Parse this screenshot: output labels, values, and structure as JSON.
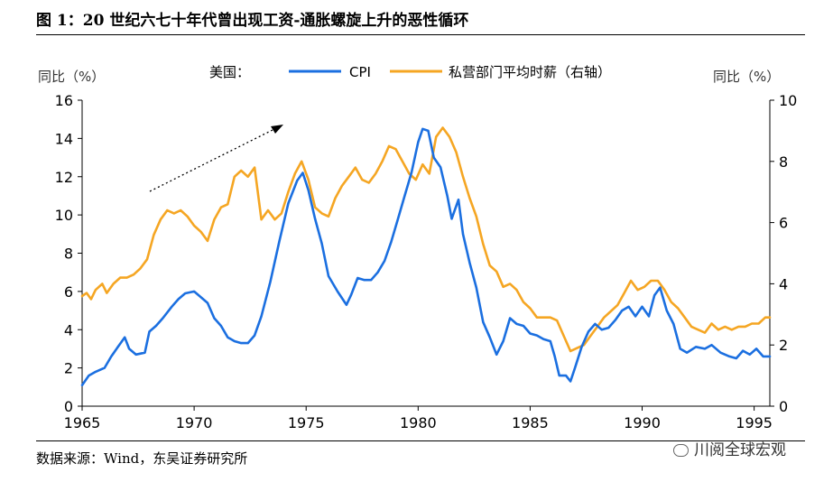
{
  "title": "图 1：20 世纪六七十年代曾出现工资-通胀螺旋上升的恶性循环",
  "footer": "数据来源：Wind，东吴证券研究所",
  "watermark": "川阅全球宏观",
  "colors": {
    "cpi": "#1B6FE0",
    "wage": "#F5A623"
  },
  "chart_data": {
    "type": "line",
    "left_axis_label": "同比（%）",
    "right_axis_label": "同比（%）",
    "legend_prefix": "美国：",
    "x_ticks": [
      1965,
      1970,
      1975,
      1980,
      1985,
      1990,
      1995
    ],
    "y_left": {
      "min": 0,
      "max": 16,
      "ticks": [
        0,
        2,
        4,
        6,
        8,
        10,
        12,
        14,
        16
      ]
    },
    "y_right": {
      "min": 0,
      "max": 10,
      "ticks": [
        0,
        2,
        4,
        6,
        8,
        10
      ]
    },
    "xlim": [
      1965,
      1995.7
    ],
    "annotation": "dotted arrow pointing upward (rising spiral trend)",
    "series": [
      {
        "name": "CPI",
        "axis": "left",
        "points": [
          [
            1965.0,
            1.1
          ],
          [
            1965.3,
            1.6
          ],
          [
            1965.6,
            1.8
          ],
          [
            1966.0,
            2.0
          ],
          [
            1966.3,
            2.6
          ],
          [
            1966.6,
            3.1
          ],
          [
            1966.9,
            3.6
          ],
          [
            1967.1,
            3.0
          ],
          [
            1967.4,
            2.7
          ],
          [
            1967.8,
            2.8
          ],
          [
            1968.0,
            3.9
          ],
          [
            1968.3,
            4.2
          ],
          [
            1968.6,
            4.6
          ],
          [
            1969.0,
            5.2
          ],
          [
            1969.3,
            5.6
          ],
          [
            1969.6,
            5.9
          ],
          [
            1970.0,
            6.0
          ],
          [
            1970.3,
            5.7
          ],
          [
            1970.6,
            5.4
          ],
          [
            1970.9,
            4.6
          ],
          [
            1971.2,
            4.2
          ],
          [
            1971.5,
            3.6
          ],
          [
            1971.8,
            3.4
          ],
          [
            1972.1,
            3.3
          ],
          [
            1972.4,
            3.3
          ],
          [
            1972.7,
            3.7
          ],
          [
            1973.0,
            4.7
          ],
          [
            1973.4,
            6.5
          ],
          [
            1973.8,
            8.6
          ],
          [
            1974.2,
            10.6
          ],
          [
            1974.6,
            11.8
          ],
          [
            1974.85,
            12.2
          ],
          [
            1975.1,
            11.3
          ],
          [
            1975.4,
            9.8
          ],
          [
            1975.7,
            8.5
          ],
          [
            1976.0,
            6.8
          ],
          [
            1976.4,
            6.0
          ],
          [
            1976.8,
            5.3
          ],
          [
            1977.0,
            5.8
          ],
          [
            1977.3,
            6.7
          ],
          [
            1977.6,
            6.6
          ],
          [
            1977.9,
            6.6
          ],
          [
            1978.2,
            7.0
          ],
          [
            1978.5,
            7.6
          ],
          [
            1978.8,
            8.6
          ],
          [
            1979.1,
            9.8
          ],
          [
            1979.4,
            11.0
          ],
          [
            1979.7,
            12.2
          ],
          [
            1980.0,
            13.8
          ],
          [
            1980.2,
            14.5
          ],
          [
            1980.45,
            14.4
          ],
          [
            1980.7,
            13.0
          ],
          [
            1981.0,
            12.5
          ],
          [
            1981.3,
            11.0
          ],
          [
            1981.5,
            9.8
          ],
          [
            1981.8,
            10.8
          ],
          [
            1982.0,
            9.0
          ],
          [
            1982.3,
            7.5
          ],
          [
            1982.6,
            6.2
          ],
          [
            1982.9,
            4.4
          ],
          [
            1983.2,
            3.6
          ],
          [
            1983.5,
            2.7
          ],
          [
            1983.8,
            3.4
          ],
          [
            1984.1,
            4.6
          ],
          [
            1984.4,
            4.3
          ],
          [
            1984.7,
            4.2
          ],
          [
            1985.0,
            3.8
          ],
          [
            1985.3,
            3.7
          ],
          [
            1985.6,
            3.5
          ],
          [
            1985.9,
            3.4
          ],
          [
            1986.1,
            2.6
          ],
          [
            1986.3,
            1.6
          ],
          [
            1986.6,
            1.6
          ],
          [
            1986.8,
            1.3
          ],
          [
            1987.0,
            2.0
          ],
          [
            1987.3,
            3.1
          ],
          [
            1987.6,
            3.9
          ],
          [
            1987.9,
            4.3
          ],
          [
            1988.2,
            4.0
          ],
          [
            1988.5,
            4.1
          ],
          [
            1988.8,
            4.5
          ],
          [
            1989.1,
            5.0
          ],
          [
            1989.4,
            5.2
          ],
          [
            1989.7,
            4.7
          ],
          [
            1990.0,
            5.2
          ],
          [
            1990.3,
            4.7
          ],
          [
            1990.55,
            5.8
          ],
          [
            1990.8,
            6.2
          ],
          [
            1991.1,
            5.0
          ],
          [
            1991.4,
            4.3
          ],
          [
            1991.7,
            3.0
          ],
          [
            1992.0,
            2.8
          ],
          [
            1992.4,
            3.1
          ],
          [
            1992.8,
            3.0
          ],
          [
            1993.1,
            3.2
          ],
          [
            1993.5,
            2.8
          ],
          [
            1993.9,
            2.6
          ],
          [
            1994.2,
            2.5
          ],
          [
            1994.5,
            2.9
          ],
          [
            1994.8,
            2.7
          ],
          [
            1995.1,
            3.0
          ],
          [
            1995.4,
            2.6
          ],
          [
            1995.7,
            2.6
          ]
        ]
      },
      {
        "name": "私营部门平均时薪（右轴）",
        "axis": "right",
        "points": [
          [
            1965.0,
            3.6
          ],
          [
            1965.2,
            3.7
          ],
          [
            1965.4,
            3.5
          ],
          [
            1965.6,
            3.8
          ],
          [
            1965.9,
            4.0
          ],
          [
            1966.1,
            3.7
          ],
          [
            1966.4,
            4.0
          ],
          [
            1966.7,
            4.2
          ],
          [
            1967.0,
            4.2
          ],
          [
            1967.3,
            4.3
          ],
          [
            1967.6,
            4.5
          ],
          [
            1967.9,
            4.8
          ],
          [
            1968.2,
            5.6
          ],
          [
            1968.5,
            6.1
          ],
          [
            1968.8,
            6.4
          ],
          [
            1969.1,
            6.3
          ],
          [
            1969.4,
            6.4
          ],
          [
            1969.7,
            6.2
          ],
          [
            1970.0,
            5.9
          ],
          [
            1970.3,
            5.7
          ],
          [
            1970.6,
            5.4
          ],
          [
            1970.9,
            6.1
          ],
          [
            1971.2,
            6.5
          ],
          [
            1971.5,
            6.6
          ],
          [
            1971.8,
            7.5
          ],
          [
            1972.1,
            7.7
          ],
          [
            1972.4,
            7.5
          ],
          [
            1972.7,
            7.8
          ],
          [
            1973.0,
            6.1
          ],
          [
            1973.3,
            6.4
          ],
          [
            1973.6,
            6.1
          ],
          [
            1973.9,
            6.3
          ],
          [
            1974.2,
            7.0
          ],
          [
            1974.5,
            7.6
          ],
          [
            1974.8,
            8.0
          ],
          [
            1975.1,
            7.4
          ],
          [
            1975.4,
            6.5
          ],
          [
            1975.7,
            6.3
          ],
          [
            1976.0,
            6.2
          ],
          [
            1976.3,
            6.8
          ],
          [
            1976.6,
            7.2
          ],
          [
            1976.9,
            7.5
          ],
          [
            1977.2,
            7.8
          ],
          [
            1977.5,
            7.4
          ],
          [
            1977.8,
            7.3
          ],
          [
            1978.1,
            7.6
          ],
          [
            1978.4,
            8.0
          ],
          [
            1978.7,
            8.5
          ],
          [
            1979.0,
            8.4
          ],
          [
            1979.3,
            8.0
          ],
          [
            1979.6,
            7.6
          ],
          [
            1979.9,
            7.4
          ],
          [
            1980.2,
            7.9
          ],
          [
            1980.5,
            7.6
          ],
          [
            1980.8,
            8.8
          ],
          [
            1981.1,
            9.1
          ],
          [
            1981.4,
            8.8
          ],
          [
            1981.7,
            8.3
          ],
          [
            1982.0,
            7.5
          ],
          [
            1982.3,
            6.8
          ],
          [
            1982.6,
            6.2
          ],
          [
            1982.9,
            5.3
          ],
          [
            1983.2,
            4.6
          ],
          [
            1983.5,
            4.4
          ],
          [
            1983.8,
            3.9
          ],
          [
            1984.1,
            4.0
          ],
          [
            1984.4,
            3.8
          ],
          [
            1984.7,
            3.4
          ],
          [
            1985.0,
            3.2
          ],
          [
            1985.3,
            2.9
          ],
          [
            1985.6,
            2.9
          ],
          [
            1985.9,
            2.9
          ],
          [
            1986.2,
            2.8
          ],
          [
            1986.5,
            2.3
          ],
          [
            1986.8,
            1.8
          ],
          [
            1987.1,
            1.9
          ],
          [
            1987.4,
            2.0
          ],
          [
            1987.7,
            2.3
          ],
          [
            1988.0,
            2.6
          ],
          [
            1988.3,
            2.9
          ],
          [
            1988.6,
            3.1
          ],
          [
            1988.9,
            3.3
          ],
          [
            1989.2,
            3.7
          ],
          [
            1989.5,
            4.1
          ],
          [
            1989.8,
            3.8
          ],
          [
            1990.1,
            3.9
          ],
          [
            1990.4,
            4.1
          ],
          [
            1990.7,
            4.1
          ],
          [
            1991.0,
            3.8
          ],
          [
            1991.3,
            3.4
          ],
          [
            1991.6,
            3.2
          ],
          [
            1991.9,
            2.9
          ],
          [
            1992.2,
            2.6
          ],
          [
            1992.5,
            2.5
          ],
          [
            1992.8,
            2.4
          ],
          [
            1993.1,
            2.7
          ],
          [
            1993.4,
            2.5
          ],
          [
            1993.7,
            2.6
          ],
          [
            1994.0,
            2.5
          ],
          [
            1994.3,
            2.6
          ],
          [
            1994.6,
            2.6
          ],
          [
            1994.9,
            2.7
          ],
          [
            1995.2,
            2.7
          ],
          [
            1995.5,
            2.9
          ],
          [
            1995.7,
            2.9
          ]
        ]
      }
    ]
  }
}
